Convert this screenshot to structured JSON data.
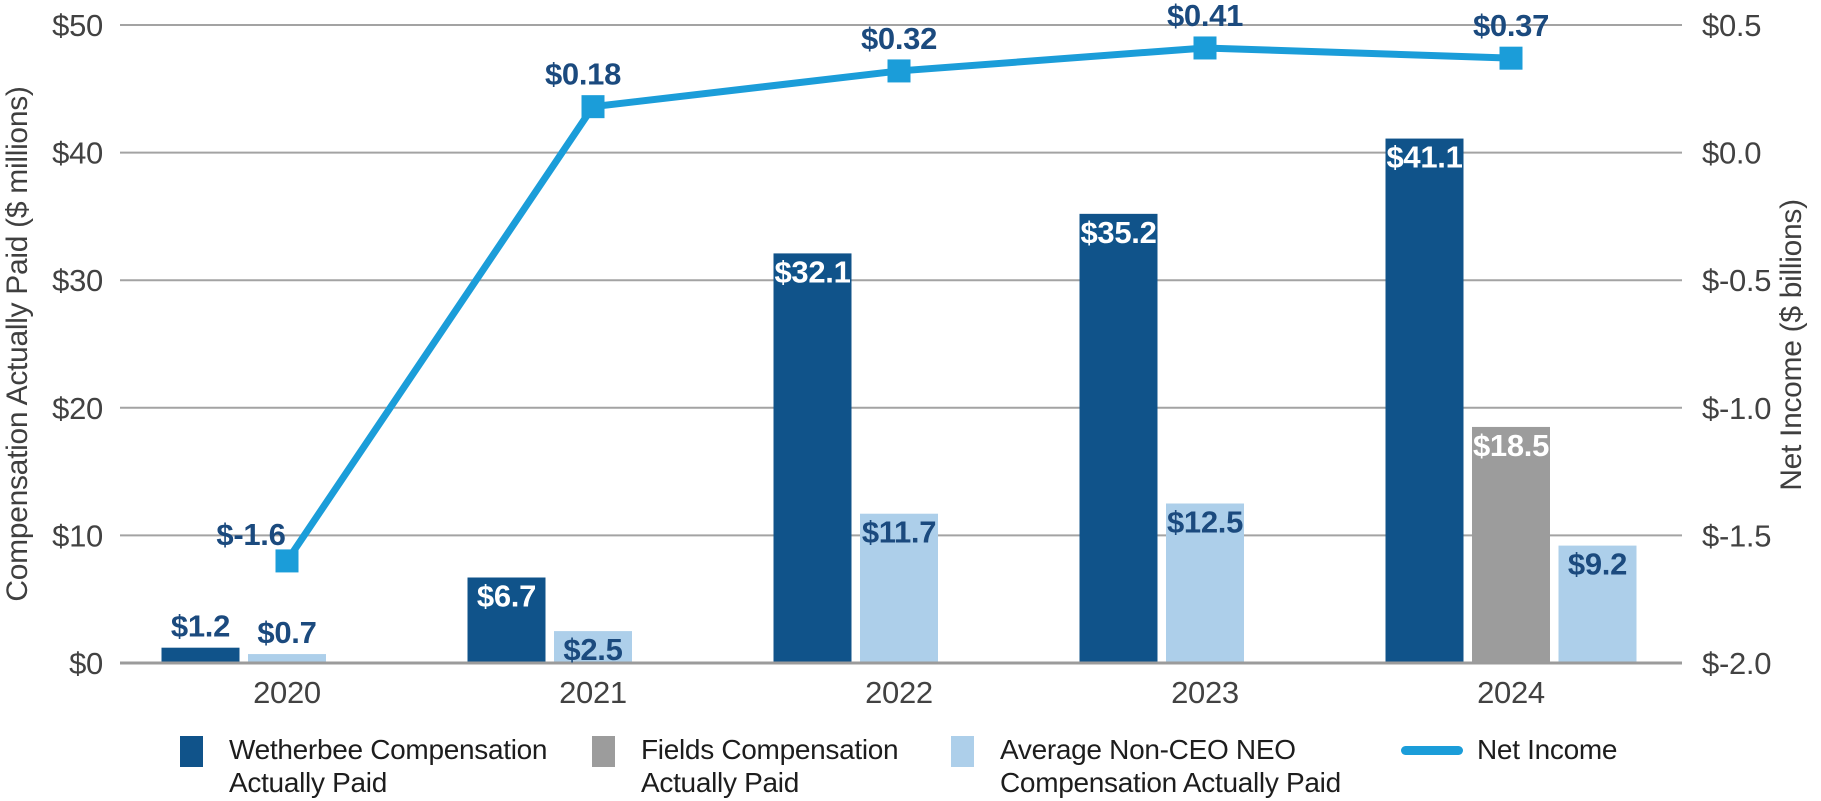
{
  "chart_data": {
    "type": "bar+line",
    "categories": [
      "2020",
      "2021",
      "2022",
      "2023",
      "2024"
    ],
    "bar_series": [
      {
        "key": "wetherbee",
        "name": "Wetherbee Compensation Actually Paid",
        "color": "#10538a",
        "values": [
          1.2,
          6.7,
          32.1,
          35.2,
          41.1
        ],
        "labels": [
          "$1.2",
          "$6.7",
          "$32.1",
          "$35.2",
          "$41.1"
        ],
        "label_placement": [
          "above",
          "inside",
          "inside",
          "inside",
          "inside"
        ],
        "label_color_mode": [
          "navy",
          "white",
          "white",
          "white",
          "white"
        ]
      },
      {
        "key": "fields",
        "name": "Fields Compensation Actually Paid",
        "color": "#9c9c9c",
        "values": [
          null,
          null,
          null,
          null,
          18.5
        ],
        "labels": [
          null,
          null,
          null,
          null,
          "$18.5"
        ],
        "label_placement": [
          null,
          null,
          null,
          null,
          "inside"
        ],
        "label_color_mode": [
          null,
          null,
          null,
          null,
          "white"
        ]
      },
      {
        "key": "avg-neo",
        "name": "Average Non-CEO NEO Compensation Actually Paid",
        "color": "#adcfea",
        "values": [
          0.7,
          2.5,
          11.7,
          12.5,
          9.2
        ],
        "labels": [
          "$0.7",
          "$2.5",
          "$11.7",
          "$12.5",
          "$9.2"
        ],
        "label_placement": [
          "above",
          "inside",
          "inside",
          "inside",
          "inside"
        ],
        "label_color_mode": [
          "navy",
          "navy",
          "navy",
          "navy",
          "navy"
        ]
      }
    ],
    "line_series": {
      "key": "net-income",
      "name": "Net Income",
      "color": "#1b9dd9",
      "values": [
        -1.6,
        0.18,
        0.32,
        0.41,
        0.37
      ],
      "labels": [
        "$-1.6",
        "$0.18",
        "$0.32",
        "$0.41",
        "$0.37"
      ]
    },
    "left_axis": {
      "title": "Compensation Actually Paid ($ millions)",
      "min": 0,
      "max": 50,
      "tick_values": [
        0,
        10,
        20,
        30,
        40,
        50
      ],
      "tick_labels": [
        "$0",
        "$10",
        "$20",
        "$30",
        "$40",
        "$50"
      ]
    },
    "right_axis": {
      "title": "Net Income ($ billions)",
      "min": -2.0,
      "max": 0.5,
      "tick_values": [
        -2.0,
        -1.5,
        -1.0,
        -0.5,
        0.0,
        0.5
      ],
      "tick_labels": [
        "$-2.0",
        "$-1.5",
        "$-1.0",
        "$-0.5",
        "$0.0",
        "$0.5"
      ]
    },
    "grid": true,
    "legend_position": "bottom",
    "colors": {
      "value_label_navy": "#1b4a7e",
      "value_label_white": "#ffffff",
      "axis_text": "#424242",
      "gridline": "#a3a3a3",
      "baseline": "#9b9b9b"
    }
  }
}
